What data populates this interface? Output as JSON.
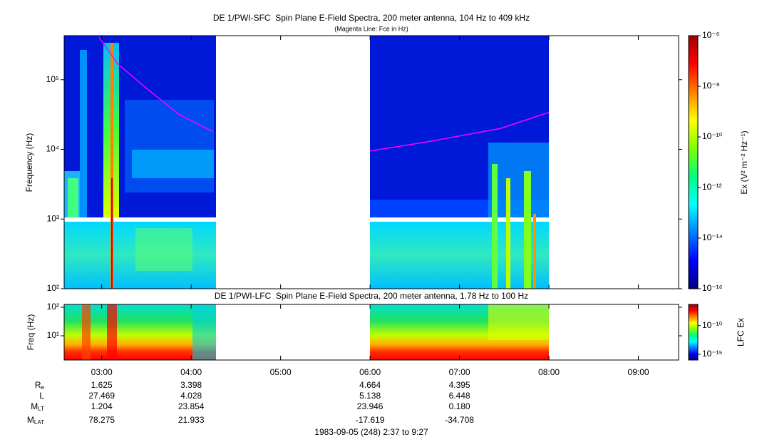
{
  "chart_data": [
    {
      "type": "spectrogram",
      "title": "DE 1/PWI-SFC  Spin Plane E-Field Spectra, 200 meter antenna, 104 Hz to 409 kHz",
      "subtitle": "(Magenta Line: Fce in Hz)",
      "y_label": "Frequency (Hz)",
      "log_y": true,
      "ylim": [
        100,
        409000
      ],
      "yticks": [
        {
          "value": 100,
          "label": "10²"
        },
        {
          "value": 1000,
          "label": "10³"
        },
        {
          "value": 10000,
          "label": "10⁴"
        },
        {
          "value": 100000,
          "label": "10⁵"
        }
      ],
      "series": [
        {
          "name": "Fce",
          "color": "#ff00ff",
          "x": [
            2.97,
            3.18,
            3.46,
            3.86,
            4.24,
            5.0,
            6.0,
            6.67,
            7.46,
            8.0
          ],
          "values": [
            409000,
            168000,
            83000,
            32000,
            18000,
            null,
            9500,
            13000,
            20000,
            34000
          ]
        }
      ],
      "colorbar": {
        "label": "Ex (V² m⁻² Hz⁻¹)",
        "log": true,
        "lim": [
          1e-16,
          1e-06
        ],
        "colormap": [
          "#000080",
          "#0000ff",
          "#0080ff",
          "#00ffff",
          "#00ff80",
          "#80ff00",
          "#ffff00",
          "#ff8000",
          "#ff0000",
          "#a00000"
        ],
        "ticks": [
          {
            "value": 1e-16,
            "label": "10⁻¹⁶"
          },
          {
            "value": 1e-14,
            "label": "10⁻¹⁴"
          },
          {
            "value": 1e-12,
            "label": "10⁻¹²"
          },
          {
            "value": 1e-10,
            "label": "10⁻¹⁰"
          },
          {
            "value": 1e-08,
            "label": "10⁻⁸"
          },
          {
            "value": 1e-06,
            "label": "10⁻⁶"
          }
        ]
      }
    },
    {
      "type": "spectrogram",
      "title": "DE 1/PWI-LFC  Spin Plane E-Field Spectra, 200 meter antenna, 1.78 Hz to 100 Hz",
      "y_label": "Freq (Hz)",
      "log_y": true,
      "ylim": [
        1.78,
        100
      ],
      "yticks": [
        {
          "value": 10,
          "label": "10¹"
        },
        {
          "value": 100,
          "label": "10²"
        }
      ],
      "xlim": [
        2.58,
        9.45
      ],
      "xticks": [
        {
          "value": 3,
          "label": "03:00"
        },
        {
          "value": 4,
          "label": "04:00"
        },
        {
          "value": 5,
          "label": "05:00"
        },
        {
          "value": 6,
          "label": "06:00"
        },
        {
          "value": 7,
          "label": "07:00"
        },
        {
          "value": 8,
          "label": "08:00"
        },
        {
          "value": 9,
          "label": "09:00"
        }
      ],
      "colorbar": {
        "label": "LFC Ex",
        "log": true,
        "lim": [
          1e-16,
          5e-07
        ],
        "colormap": [
          "#000080",
          "#0000ff",
          "#0080ff",
          "#00ffff",
          "#00ff80",
          "#80ff00",
          "#ffff00",
          "#ff8000",
          "#ff0000",
          "#a00000"
        ],
        "ticks": [
          {
            "value": 1e-15,
            "label": "10⁻¹⁵"
          },
          {
            "value": 1e-10,
            "label": "10⁻¹⁰"
          }
        ]
      }
    }
  ],
  "ephemeris": {
    "rows": [
      {
        "label": "R",
        "sub": "e",
        "values": [
          "1.625",
          "3.398",
          null,
          "4.664",
          "4.395",
          null,
          null
        ]
      },
      {
        "label": "L",
        "values": [
          "27.469",
          "4.028",
          null,
          "5.138",
          "6.448",
          null,
          null
        ]
      },
      {
        "label": "M",
        "sub": "LT",
        "values": [
          "1.204",
          "23.854",
          null,
          "23.946",
          "0.180",
          null,
          null
        ]
      },
      {
        "label": "M",
        "sub": "LAT",
        "values": [
          "78.275",
          "21.933",
          null,
          "-17.619",
          "-34.708",
          null,
          null
        ]
      }
    ]
  },
  "footer": "1983-09-05 (248) 2:37 to 9:27"
}
